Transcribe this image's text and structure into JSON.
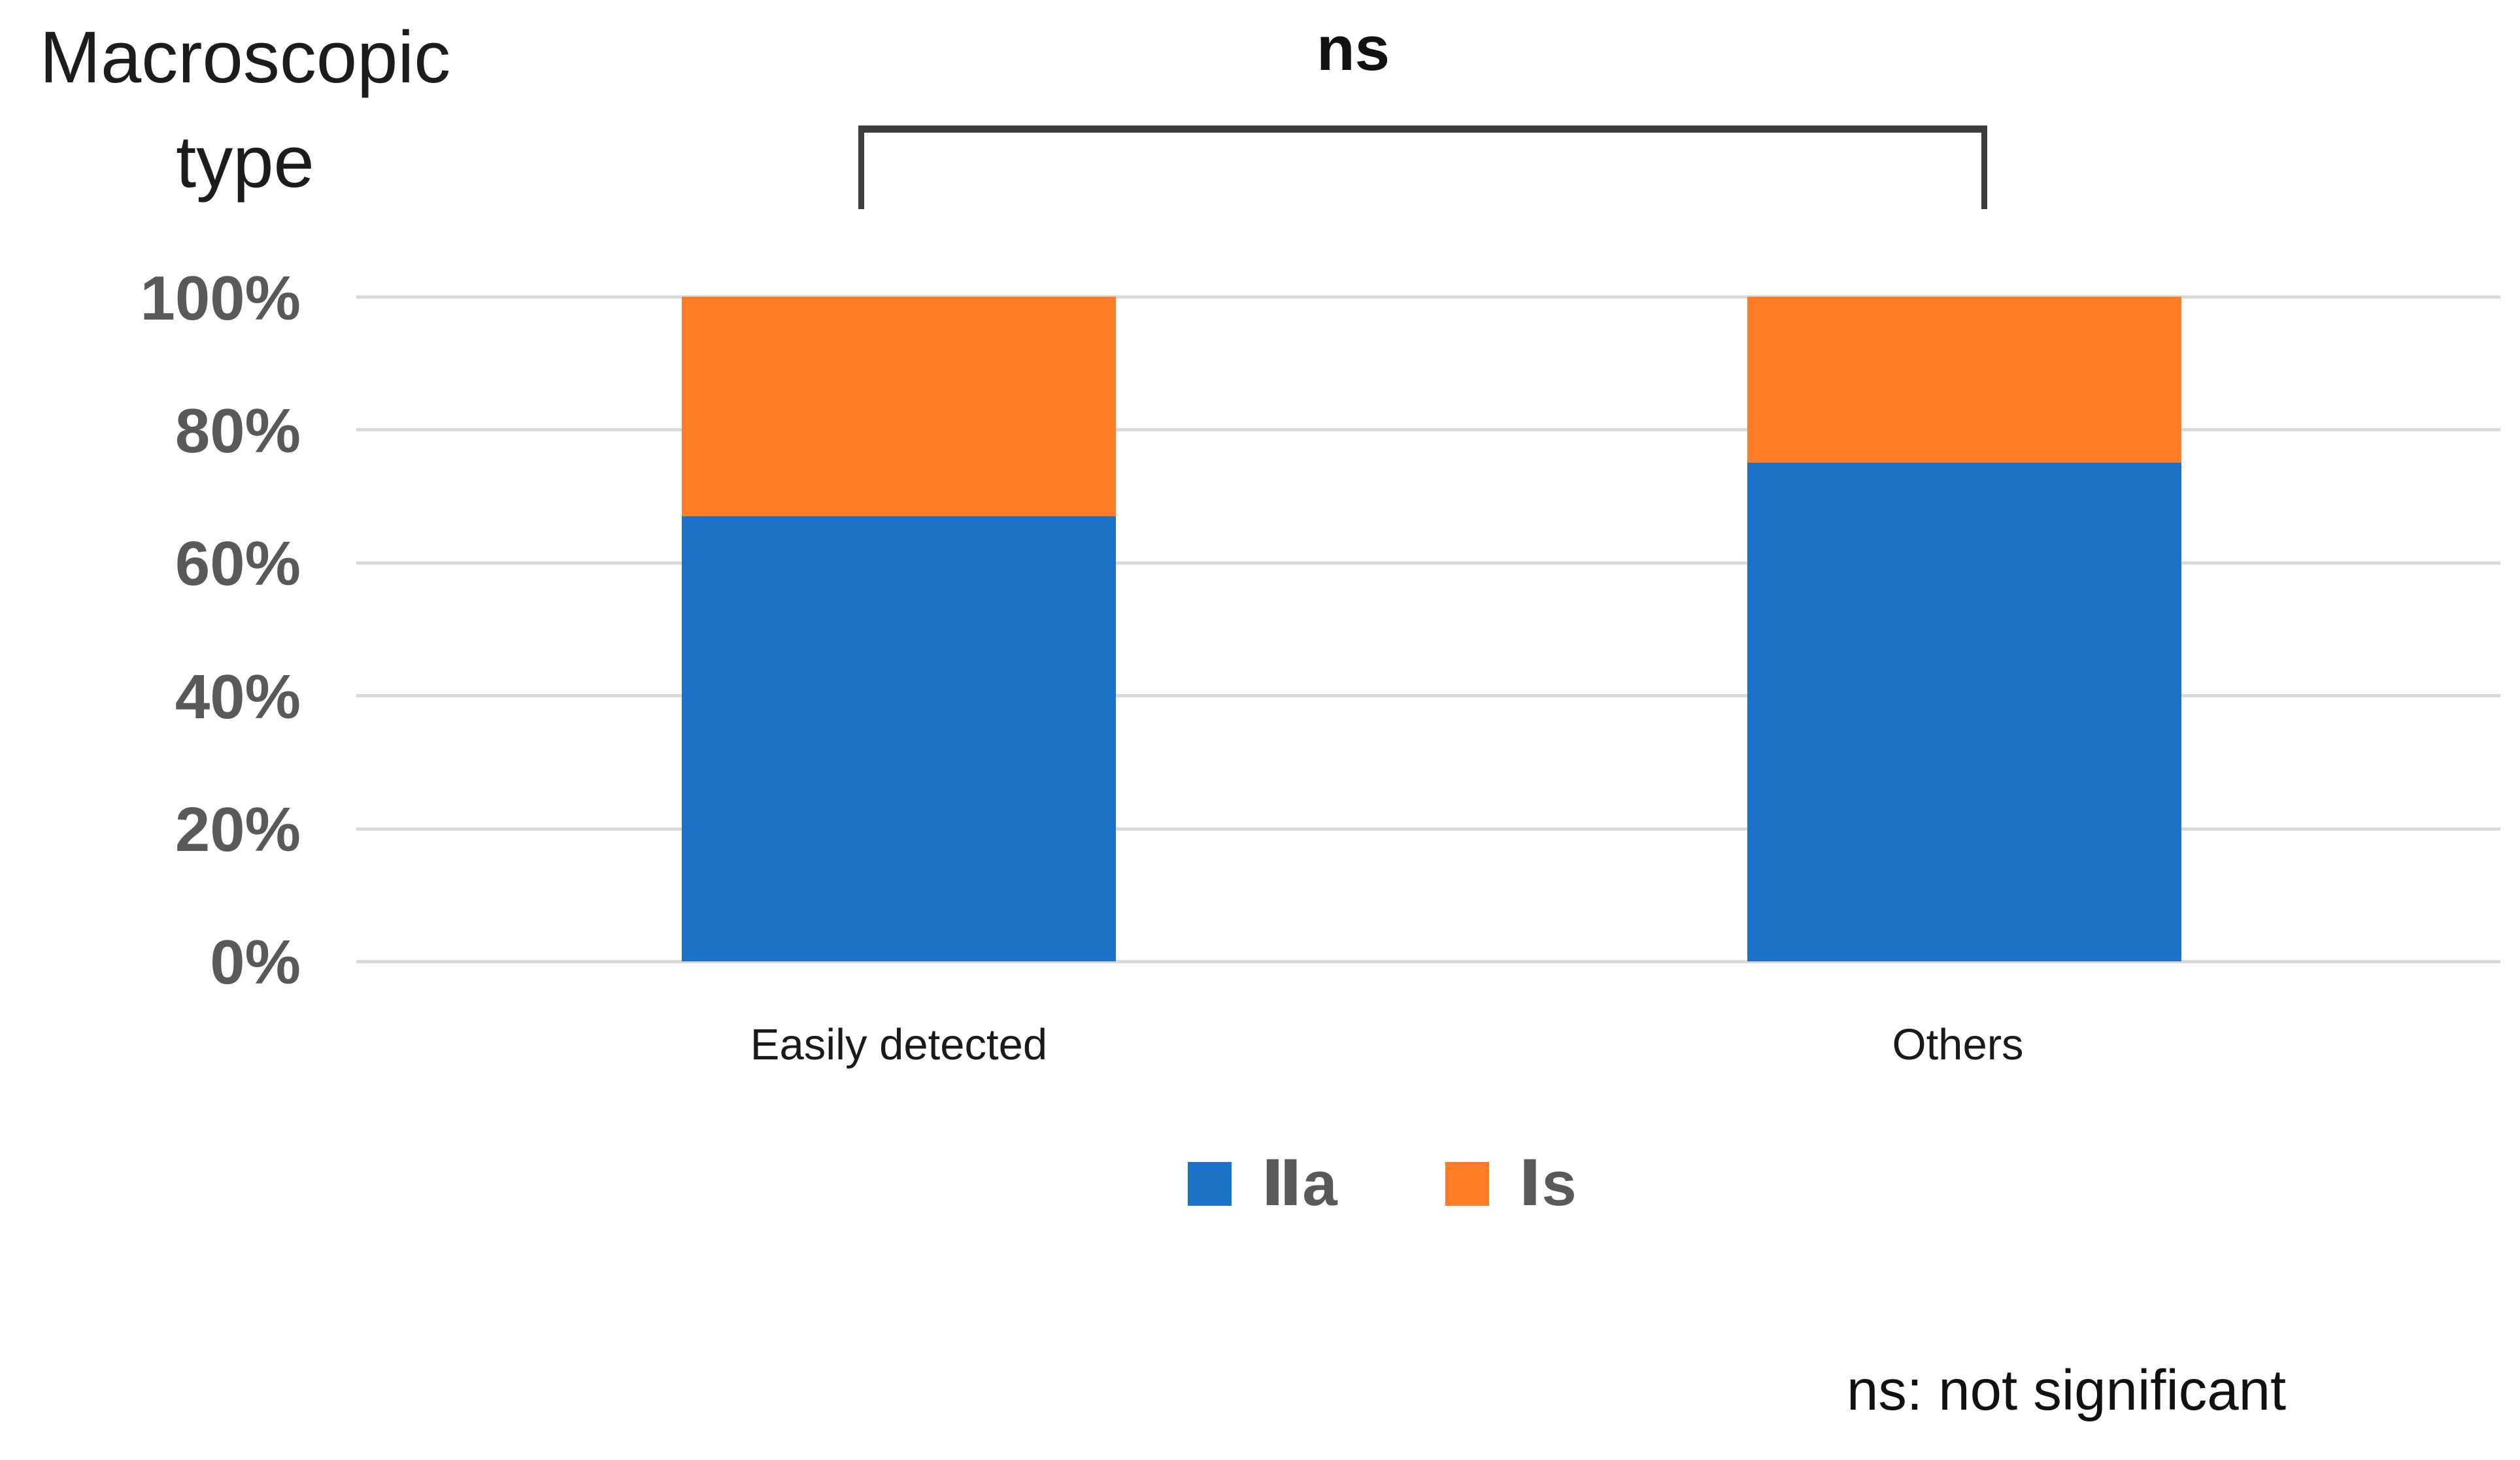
{
  "figure": {
    "axis_title_lines": [
      "Macroscopic",
      "type"
    ],
    "significance_label": "ns",
    "footnote": "ns: not significant"
  },
  "chart_data": {
    "type": "bar",
    "stacked": true,
    "percent_stacked": true,
    "title": "",
    "xlabel": "",
    "ylabel": "Macroscopic type",
    "categories": [
      "Easily detected",
      "Others"
    ],
    "series": [
      {
        "name": "Ⅱa",
        "color": "#1b72c6",
        "values": [
          67,
          75
        ]
      },
      {
        "name": "Ⅰs",
        "color": "#fd7d27",
        "values": [
          33,
          25
        ]
      }
    ],
    "ylim": [
      0,
      100
    ],
    "ytick_labels": [
      "100%",
      "80%",
      "60%",
      "40%",
      "20%",
      "0%"
    ],
    "grid": true,
    "gridline_color": "#d9d9d9",
    "legend_position": "bottom",
    "annotations": [
      {
        "type": "significance-bracket",
        "label": "ns",
        "between": [
          "Easily detected",
          "Others"
        ],
        "note": "ns: not significant"
      }
    ]
  }
}
